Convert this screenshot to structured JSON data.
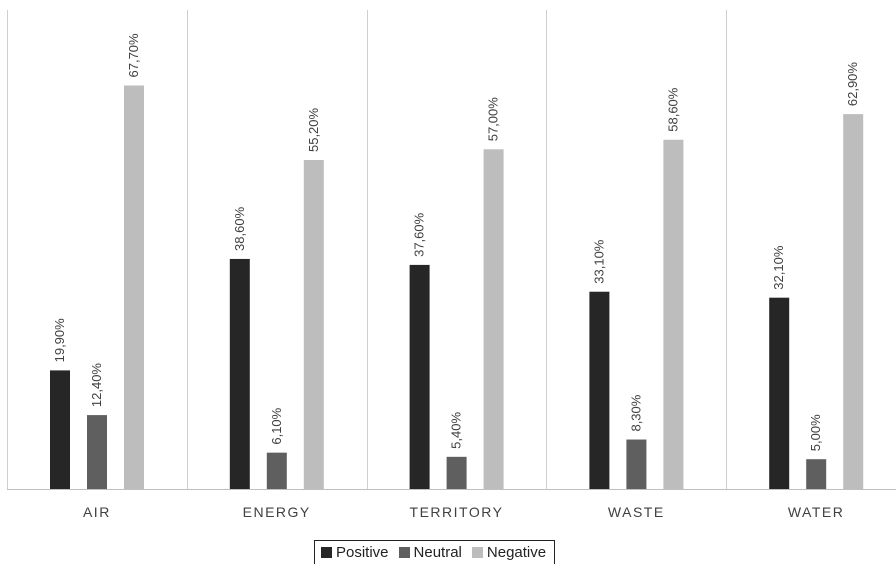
{
  "chart_data": {
    "type": "bar",
    "categories": [
      "AIR",
      "ENERGY",
      "TERRITORY",
      "WASTE",
      "WATER"
    ],
    "series": [
      {
        "name": "Positive",
        "color": "#262626",
        "values": [
          19.9,
          38.6,
          37.6,
          33.1,
          32.1
        ],
        "labels": [
          "19,90%",
          "38,60%",
          "37,60%",
          "33,10%",
          "32,10%"
        ]
      },
      {
        "name": "Neutral",
        "color": "#5f5f5f",
        "values": [
          12.4,
          6.1,
          5.4,
          8.3,
          5.0
        ],
        "labels": [
          "12,40%",
          "6,10%",
          "5,40%",
          "8,30%",
          "5,00%"
        ]
      },
      {
        "name": "Negative",
        "color": "#bdbdbd",
        "values": [
          67.7,
          55.2,
          57.0,
          58.6,
          62.9
        ],
        "labels": [
          "67,70%",
          "55,20%",
          "57,00%",
          "58,60%",
          "62,90%"
        ]
      }
    ],
    "ylim": [
      0,
      78
    ],
    "grid": "vertical category separators",
    "legend_position": "bottom",
    "title": "",
    "xlabel": "",
    "ylabel": ""
  }
}
